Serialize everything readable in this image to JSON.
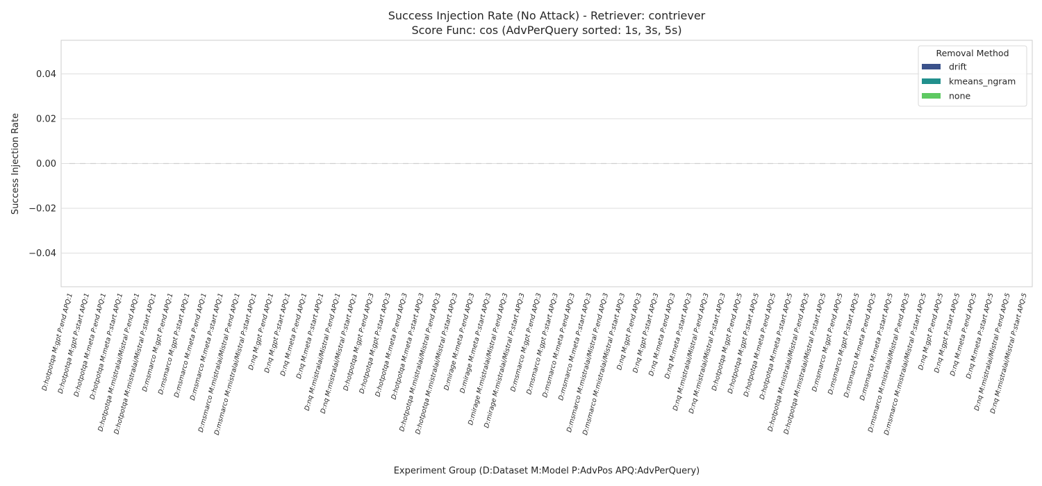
{
  "chart_data": {
    "type": "bar",
    "title": "Success Injection Rate (No Attack) - Retriever: contriever",
    "subtitle": "Score Func: cos (AdvPerQuery sorted: 1s, 3s, 5s)",
    "xlabel": "Experiment Group (D:Dataset M:Model P:AdvPos APQ:AdvPerQuery)",
    "ylabel": "Success Injection Rate",
    "ylim": [
      -0.055,
      0.055
    ],
    "yticks": [
      -0.04,
      -0.02,
      0.0,
      0.02,
      0.04
    ],
    "ytick_labels": [
      "−0.04",
      "−0.02",
      "0.00",
      "0.02",
      "0.04"
    ],
    "grid": true,
    "reference_line": 0.0,
    "categories": [
      "D:hotpotqa M:gpt P:end APQ:1",
      "D:hotpotqa M:gpt P:start APQ:1",
      "D:hotpotqa M:meta P:end APQ:1",
      "D:hotpotqa M:meta P:start APQ:1",
      "D:hotpotqa M:mistralai/Mistral P:end APQ:1",
      "D:hotpotqa M:mistralai/Mistral P:start APQ:1",
      "D:msmarco M:gpt P:end APQ:1",
      "D:msmarco M:gpt P:start APQ:1",
      "D:msmarco M:meta P:end APQ:1",
      "D:msmarco M:meta P:start APQ:1",
      "D:msmarco M:mistralai/Mistral P:end APQ:1",
      "D:msmarco M:mistralai/Mistral P:start APQ:1",
      "D:nq M:gpt P:end APQ:1",
      "D:nq M:gpt P:start APQ:1",
      "D:nq M:meta P:end APQ:1",
      "D:nq M:meta P:start APQ:1",
      "D:nq M:mistralai/Mistral P:end APQ:1",
      "D:nq M:mistralai/Mistral P:start APQ:1",
      "D:hotpotqa M:gpt P:end APQ:3",
      "D:hotpotqa M:gpt P:start APQ:3",
      "D:hotpotqa M:meta P:end APQ:3",
      "D:hotpotqa M:meta P:start APQ:3",
      "D:hotpotqa M:mistralai/Mistral P:end APQ:3",
      "D:hotpotqa M:mistralai/Mistral P:start APQ:3",
      "D:mirage M:meta P:end APQ:3",
      "D:mirage M:meta P:start APQ:3",
      "D:mirage M:mistralai/Mistral P:end APQ:3",
      "D:mirage M:mistralai/Mistral P:start APQ:3",
      "D:msmarco M:gpt P:end APQ:3",
      "D:msmarco M:gpt P:start APQ:3",
      "D:msmarco M:meta P:end APQ:3",
      "D:msmarco M:meta P:start APQ:3",
      "D:msmarco M:mistralai/Mistral P:end APQ:3",
      "D:msmarco M:mistralai/Mistral P:start APQ:3",
      "D:nq M:gpt P:end APQ:3",
      "D:nq M:gpt P:start APQ:3",
      "D:nq M:meta P:end APQ:3",
      "D:nq M:meta P:start APQ:3",
      "D:nq M:mistralai/Mistral P:end APQ:3",
      "D:nq M:mistralai/Mistral P:start APQ:3",
      "D:hotpotqa M:gpt P:end APQ:5",
      "D:hotpotqa M:gpt P:start APQ:5",
      "D:hotpotqa M:meta P:end APQ:5",
      "D:hotpotqa M:meta P:start APQ:5",
      "D:hotpotqa M:mistralai/Mistral P:end APQ:5",
      "D:hotpotqa M:mistralai/Mistral P:start APQ:5",
      "D:msmarco M:gpt P:end APQ:5",
      "D:msmarco M:gpt P:start APQ:5",
      "D:msmarco M:meta P:end APQ:5",
      "D:msmarco M:meta P:start APQ:5",
      "D:msmarco M:mistralai/Mistral P:end APQ:5",
      "D:msmarco M:mistralai/Mistral P:start APQ:5",
      "D:nq M:gpt P:end APQ:5",
      "D:nq M:gpt P:start APQ:5",
      "D:nq M:meta P:end APQ:5",
      "D:nq M:meta P:start APQ:5",
      "D:nq M:mistralai/Mistral P:end APQ:5",
      "D:nq M:mistralai/Mistral P:start APQ:5"
    ],
    "series": [
      {
        "name": "drift",
        "color": "#3b528b",
        "values": [
          0,
          0,
          0,
          0,
          0,
          0,
          0,
          0,
          0,
          0,
          0,
          0,
          0,
          0,
          0,
          0,
          0,
          0,
          0,
          0,
          0,
          0,
          0,
          0,
          0,
          0,
          0,
          0,
          0,
          0,
          0,
          0,
          0,
          0,
          0,
          0,
          0,
          0,
          0,
          0,
          0,
          0,
          0,
          0,
          0,
          0,
          0,
          0,
          0,
          0,
          0,
          0,
          0,
          0,
          0,
          0,
          0,
          0
        ]
      },
      {
        "name": "kmeans_ngram",
        "color": "#21908d",
        "values": [
          0,
          0,
          0,
          0,
          0,
          0,
          0,
          0,
          0,
          0,
          0,
          0,
          0,
          0,
          0,
          0,
          0,
          0,
          0,
          0,
          0,
          0,
          0,
          0,
          0,
          0,
          0,
          0,
          0,
          0,
          0,
          0,
          0,
          0,
          0,
          0,
          0,
          0,
          0,
          0,
          0,
          0,
          0,
          0,
          0,
          0,
          0,
          0,
          0,
          0,
          0,
          0,
          0,
          0,
          0,
          0,
          0,
          0
        ]
      },
      {
        "name": "none",
        "color": "#5ec962",
        "values": [
          0,
          0,
          0,
          0,
          0,
          0,
          0,
          0,
          0,
          0,
          0,
          0,
          0,
          0,
          0,
          0,
          0,
          0,
          0,
          0,
          0,
          0,
          0,
          0,
          0,
          0,
          0,
          0,
          0,
          0,
          0,
          0,
          0,
          0,
          0,
          0,
          0,
          0,
          0,
          0,
          0,
          0,
          0,
          0,
          0,
          0,
          0,
          0,
          0,
          0,
          0,
          0,
          0,
          0,
          0,
          0,
          0,
          0
        ]
      }
    ],
    "legend": {
      "title": "Removal Method",
      "placement": "top-right"
    }
  }
}
